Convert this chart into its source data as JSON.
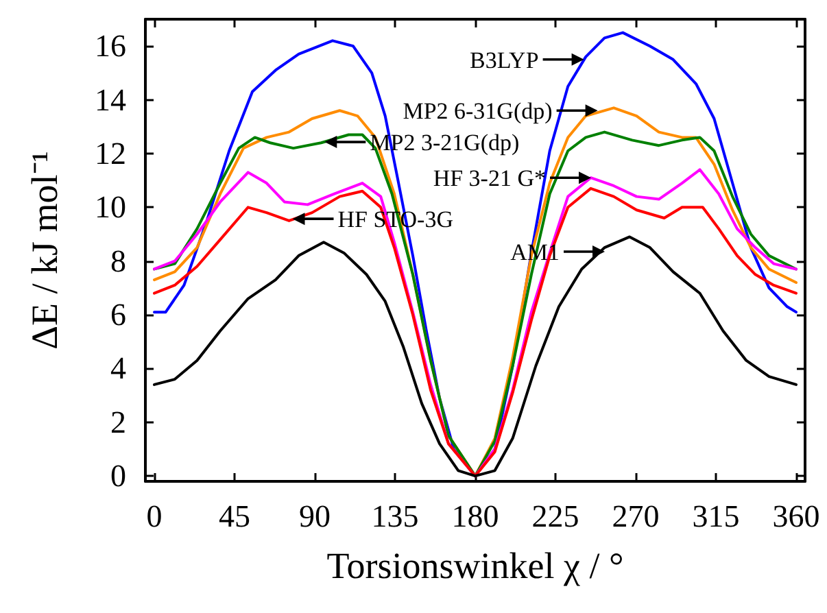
{
  "chart_data": {
    "type": "line",
    "xlabel": "Torsionswinkel χ / °",
    "ylabel": "ΔE / kJ mol⁻¹",
    "xlim": [
      -5,
      365
    ],
    "xticks": [
      0,
      45,
      90,
      135,
      180,
      225,
      270,
      315,
      360
    ],
    "ylim": [
      -0.2,
      17
    ],
    "yticks": [
      0,
      2,
      4,
      6,
      8,
      10,
      12,
      14,
      16
    ],
    "grid": false,
    "marker": "none",
    "line_style": "solid",
    "series": [
      {
        "color": "#0000ff",
        "x": [
          0,
          6.4,
          16.7,
          29.5,
          42,
          55,
          68,
          81,
          100,
          111.5,
          122,
          129.5,
          137,
          145,
          152.6,
          160,
          168,
          180,
          191,
          201,
          211.5,
          221.8,
          232,
          242,
          252.5,
          262.8,
          278,
          291,
          303.8,
          314,
          324.3,
          334.6,
          344.8,
          355,
          360
        ],
        "values": [
          6.1,
          6.1,
          7.1,
          9.5,
          12.1,
          14.3,
          15.1,
          15.7,
          16.2,
          16.0,
          15.0,
          13.4,
          10.9,
          8.2,
          5.4,
          2.9,
          1.0,
          0,
          1.0,
          4.1,
          8.3,
          12.1,
          14.5,
          15.6,
          16.3,
          16.5,
          16.0,
          15.5,
          14.6,
          13.3,
          10.9,
          8.5,
          7.0,
          6.3,
          6.1
        ]
      },
      {
        "color": "#ff8c00",
        "x": [
          0,
          11.5,
          24,
          37,
          50,
          63,
          75.6,
          88.5,
          104,
          114,
          124,
          134.6,
          145,
          155,
          165,
          180,
          191,
          201,
          211.5,
          221.8,
          232,
          242,
          257.7,
          270.5,
          283,
          296,
          303.8,
          314,
          324.3,
          334.6,
          344.8,
          360
        ],
        "values": [
          7.3,
          7.6,
          8.5,
          10.5,
          12.2,
          12.6,
          12.8,
          13.3,
          13.6,
          13.4,
          12.6,
          10.5,
          7.5,
          4.3,
          1.5,
          0,
          1.4,
          4.4,
          8.2,
          10.9,
          12.6,
          13.4,
          13.7,
          13.4,
          12.8,
          12.6,
          12.6,
          11.6,
          9.9,
          8.5,
          7.7,
          7.2
        ]
      },
      {
        "color": "#008000",
        "x": [
          0,
          11.5,
          24,
          37,
          47.4,
          56.4,
          65,
          78,
          93.6,
          109,
          116.7,
          124,
          133.3,
          145,
          155,
          165,
          180,
          191,
          201,
          211.5,
          221.8,
          232,
          242,
          252.5,
          268,
          283,
          296,
          306,
          314,
          324.3,
          334.6,
          344.8,
          360
        ],
        "values": [
          7.7,
          7.9,
          9.2,
          10.9,
          12.2,
          12.6,
          12.4,
          12.2,
          12.4,
          12.7,
          12.7,
          12.2,
          10.5,
          7.5,
          4.3,
          1.5,
          0,
          1.3,
          4.1,
          7.5,
          10.5,
          12.1,
          12.6,
          12.8,
          12.5,
          12.3,
          12.5,
          12.6,
          12.1,
          10.4,
          9.0,
          8.2,
          7.7
        ]
      },
      {
        "color": "#ff00ff",
        "x": [
          0,
          11.5,
          24,
          37,
          52.6,
          63,
          73,
          86,
          101,
          116.7,
          127,
          134.6,
          145,
          155,
          165,
          180,
          191,
          201,
          211.5,
          221.8,
          232,
          244.8,
          257.7,
          270.5,
          283,
          296,
          306,
          316.6,
          326.9,
          337.1,
          347.4,
          360
        ],
        "values": [
          7.7,
          8.0,
          9.0,
          10.2,
          11.3,
          10.9,
          10.2,
          10.1,
          10.5,
          10.9,
          10.4,
          8.7,
          6.1,
          3.4,
          1.2,
          0,
          1.0,
          3.2,
          6.1,
          8.3,
          10.4,
          11.1,
          10.8,
          10.4,
          10.3,
          10.9,
          11.4,
          10.5,
          9.2,
          8.5,
          7.9,
          7.7
        ]
      },
      {
        "color": "#ff0000",
        "x": [
          0,
          11.5,
          24,
          37,
          52.6,
          63,
          75.6,
          88.5,
          104,
          116.7,
          127,
          134.6,
          145,
          155,
          165,
          180,
          191,
          201,
          211.5,
          221.8,
          232,
          244.8,
          257.7,
          270.5,
          286,
          296,
          307.6,
          316.6,
          326.9,
          337.1,
          347.4,
          360
        ],
        "values": [
          6.8,
          7.1,
          7.8,
          8.8,
          10.0,
          9.8,
          9.5,
          9.8,
          10.4,
          10.6,
          10.0,
          8.5,
          6.0,
          3.2,
          1.2,
          0,
          0.9,
          3.1,
          5.8,
          8.2,
          10.0,
          10.7,
          10.4,
          9.9,
          9.6,
          10.0,
          10.0,
          9.2,
          8.2,
          7.5,
          7.1,
          6.8
        ]
      },
      {
        "color": "#000000",
        "x": [
          0,
          11.5,
          24,
          37,
          52.6,
          68,
          81,
          95,
          106.4,
          119,
          129.5,
          139.7,
          150,
          160,
          170.5,
          180,
          191,
          201,
          214,
          226.9,
          239.7,
          252.5,
          266.6,
          278,
          291,
          306,
          319,
          332,
          344.8,
          360
        ],
        "values": [
          3.4,
          3.6,
          4.3,
          5.4,
          6.6,
          7.3,
          8.2,
          8.7,
          8.3,
          7.5,
          6.5,
          4.8,
          2.7,
          1.2,
          0.2,
          0,
          0.2,
          1.4,
          4.1,
          6.3,
          7.7,
          8.5,
          8.9,
          8.5,
          7.6,
          6.8,
          5.4,
          4.3,
          3.7,
          3.4
        ]
      }
    ],
    "annotations": [
      {
        "text": "B3LYP",
        "x": 241,
        "y": 15.5
      },
      {
        "text": "MP2 6-31G(dp)",
        "x": 248.7,
        "y": 13.6
      },
      {
        "text": "MP2 3-21G(dp)",
        "x": 95.5,
        "y": 12.43
      },
      {
        "text": "HF 3-21 G*",
        "x": 245,
        "y": 11.1
      },
      {
        "text": "HF STO-3G",
        "x": 77.5,
        "y": 9.57
      },
      {
        "text": "AM1",
        "x": 252.7,
        "y": 8.35
      }
    ]
  }
}
